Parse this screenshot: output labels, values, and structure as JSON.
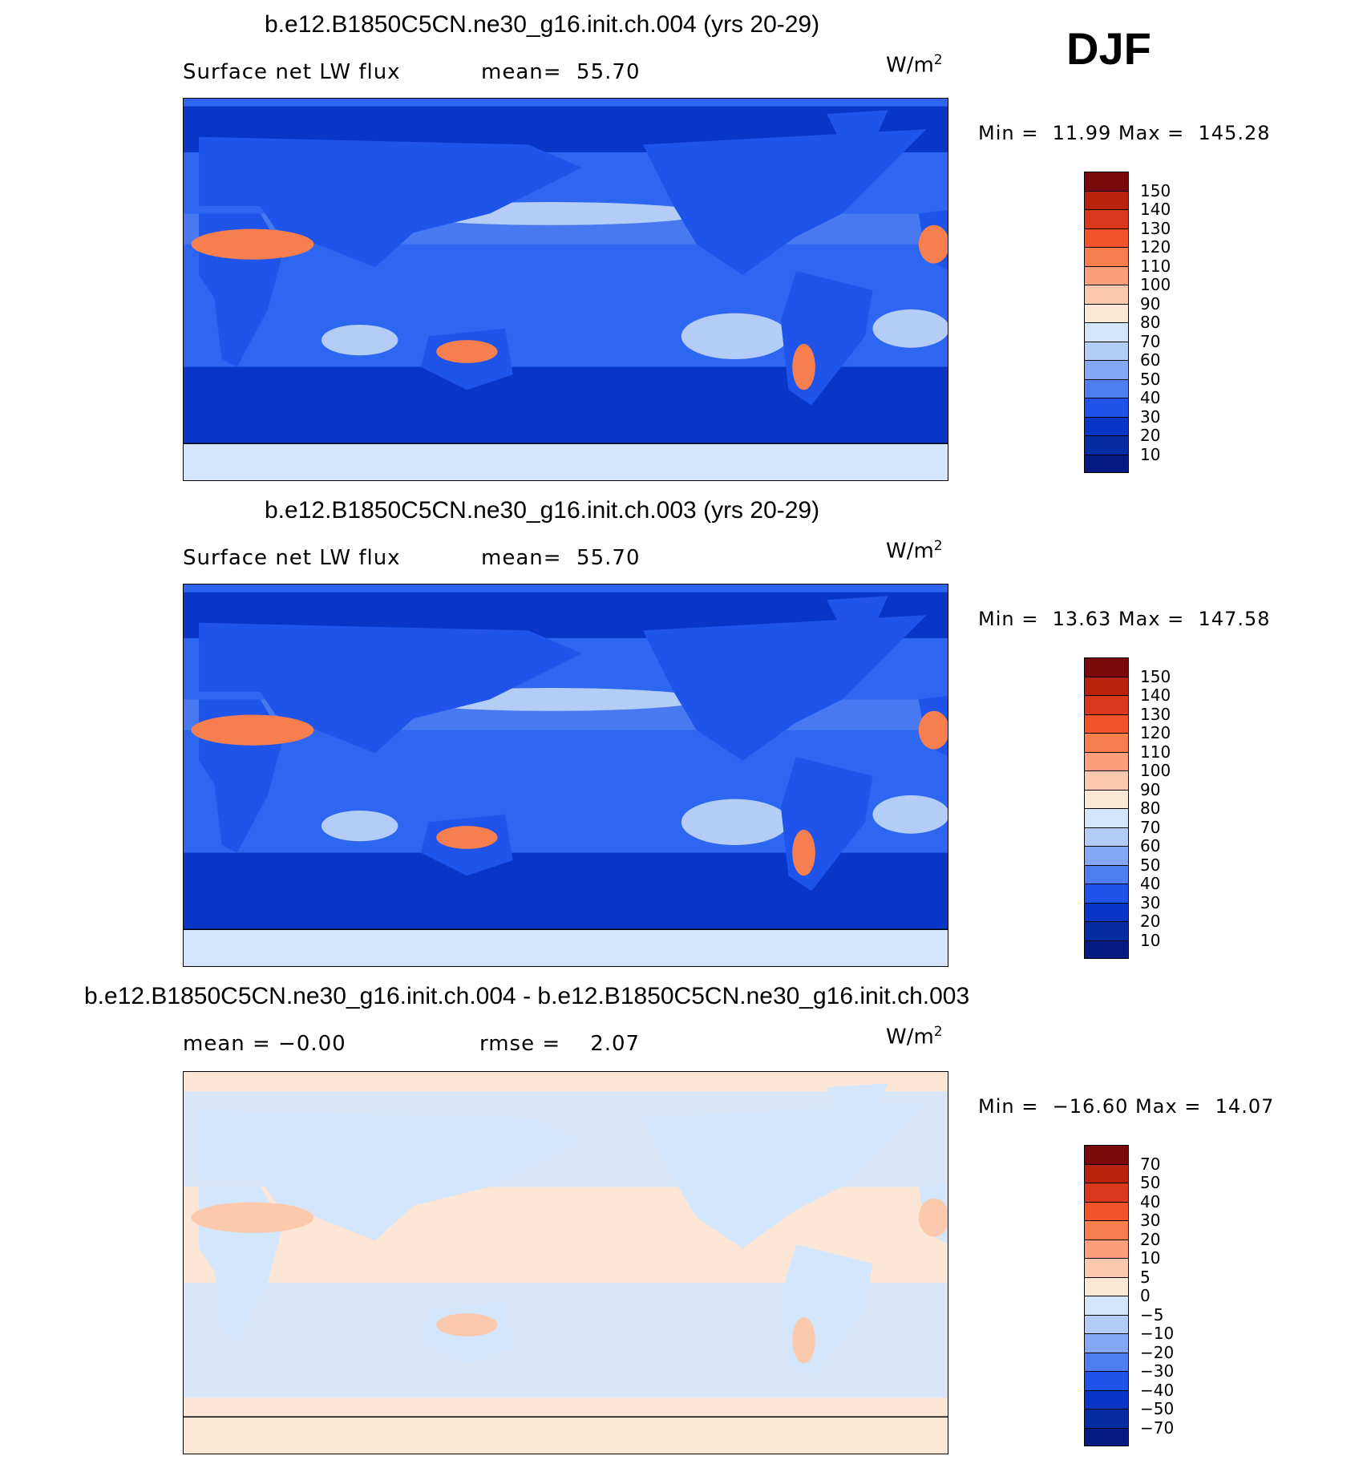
{
  "season": "DJF",
  "units_base": "W/m",
  "units_exp": "2",
  "panels": [
    {
      "title": "b.e12.B1850C5CN.ne30_g16.init.ch.004 (yrs 20-29)",
      "subtitle_left": "Surface net LW flux",
      "subtitle_mid": "mean=  55.70",
      "min_label": "Min =",
      "min_value": "11.99",
      "max_label": "Max =",
      "max_value": "145.28",
      "background": "#2d66f0",
      "labels": [
        "150",
        "140",
        "130",
        "120",
        "110",
        "100",
        "90",
        "80",
        "70",
        "60",
        "50",
        "40",
        "30",
        "20",
        "10"
      ]
    },
    {
      "title": "b.e12.B1850C5CN.ne30_g16.init.ch.003 (yrs 20-29)",
      "subtitle_left": "Surface net LW flux",
      "subtitle_mid": "mean=  55.70",
      "min_label": "Min =",
      "min_value": "13.63",
      "max_label": "Max =",
      "max_value": "147.58",
      "background": "#2d66f0",
      "labels": [
        "150",
        "140",
        "130",
        "120",
        "110",
        "100",
        "90",
        "80",
        "70",
        "60",
        "50",
        "40",
        "30",
        "20",
        "10"
      ]
    },
    {
      "title": "b.e12.B1850C5CN.ne30_g16.init.ch.004 - b.e12.B1850C5CN.ne30_g16.init.ch.003",
      "subtitle_left": "mean =   −0.00",
      "subtitle_mid": "rmse =    2.07",
      "min_label": "Min =",
      "min_value": "−16.60",
      "max_label": "Max =",
      "max_value": "14.07",
      "background": "#fde6d6",
      "labels": [
        "70",
        "50",
        "40",
        "30",
        "20",
        "10",
        "5",
        "0",
        "−5",
        "−10",
        "−20",
        "−30",
        "−40",
        "−50",
        "−70"
      ]
    }
  ],
  "colorbar_colors": [
    "#7a0a0a",
    "#b8240b",
    "#d9381a",
    "#f2532c",
    "#f77f4f",
    "#faa07a",
    "#fdc9ad",
    "#fde8d6",
    "#d4e6fb",
    "#b3cdf7",
    "#84a8f5",
    "#4f7ef0",
    "#1f54ea",
    "#0a36c8",
    "#062ca3",
    "#061a84"
  ]
}
